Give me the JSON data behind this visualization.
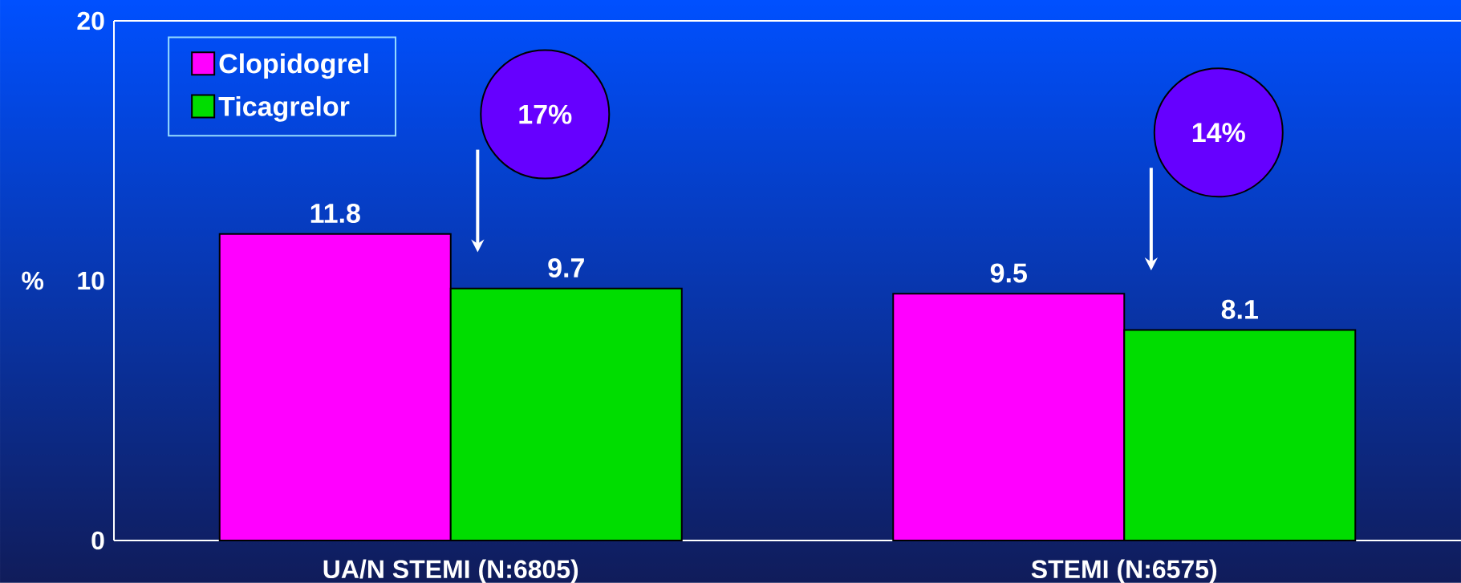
{
  "chart_data": {
    "type": "bar",
    "ylabel": "%",
    "categories": [
      "UA/N STEMI (N:6805)",
      "STEMI (N:6575)"
    ],
    "series": [
      {
        "name": "Clopidogrel",
        "color": "#ff00ff",
        "values": [
          11.8,
          9.5
        ]
      },
      {
        "name": "Ticagrelor",
        "color": "#00dd00",
        "values": [
          9.7,
          8.1
        ]
      }
    ],
    "ylim": [
      0,
      20
    ],
    "yticks": [
      0,
      10,
      20
    ],
    "data_labels": true,
    "legend": "top left",
    "annotations": [
      "17%",
      "14%"
    ]
  }
}
